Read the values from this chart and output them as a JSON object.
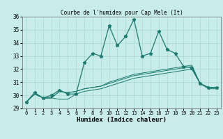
{
  "title": "Courbe de l'humidex pour Cap Mele (It)",
  "xlabel": "Humidex (Indice chaleur)",
  "xlim": [
    -0.5,
    23.5
  ],
  "ylim": [
    29,
    36
  ],
  "yticks": [
    29,
    30,
    31,
    32,
    33,
    34,
    35,
    36
  ],
  "xticks": [
    0,
    1,
    2,
    3,
    4,
    5,
    6,
    7,
    8,
    9,
    10,
    11,
    12,
    13,
    14,
    15,
    16,
    17,
    18,
    19,
    20,
    21,
    22,
    23
  ],
  "bg_color": "#c8ecea",
  "line_color": "#1a7a6e",
  "grid_color": "#a8d8d4",
  "series0": [
    29.5,
    30.2,
    29.8,
    30.0,
    30.4,
    30.1,
    30.1,
    32.5,
    33.2,
    33.0,
    35.3,
    33.8,
    34.5,
    35.8,
    33.0,
    33.2,
    34.9,
    33.5,
    33.2,
    32.2,
    32.1,
    30.9,
    30.6,
    30.6
  ],
  "series1": [
    29.5,
    30.1,
    29.8,
    29.8,
    29.7,
    29.7,
    30.1,
    30.3,
    30.4,
    30.5,
    30.7,
    30.9,
    31.1,
    31.3,
    31.4,
    31.5,
    31.6,
    31.7,
    31.8,
    31.9,
    32.0,
    30.9,
    30.5,
    30.5
  ],
  "series2": [
    29.5,
    30.1,
    29.8,
    29.8,
    30.3,
    30.2,
    30.3,
    30.5,
    30.6,
    30.7,
    30.9,
    31.1,
    31.3,
    31.5,
    31.6,
    31.7,
    31.8,
    31.9,
    32.0,
    32.1,
    32.2,
    30.9,
    30.6,
    30.6
  ],
  "series3": [
    29.5,
    30.1,
    29.8,
    29.8,
    30.3,
    30.2,
    30.3,
    30.5,
    30.6,
    30.7,
    31.0,
    31.2,
    31.4,
    31.6,
    31.7,
    31.8,
    31.9,
    32.0,
    32.1,
    32.2,
    32.3,
    30.9,
    30.6,
    30.6
  ]
}
